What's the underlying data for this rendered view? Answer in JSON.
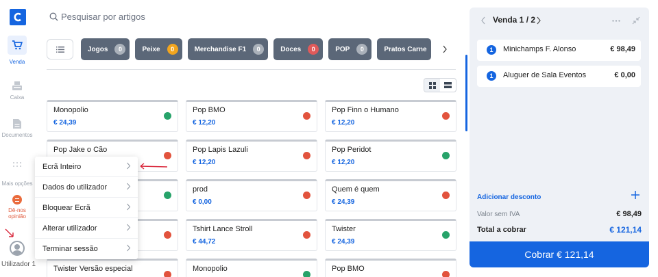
{
  "sidebar": {
    "logo": "C",
    "items": [
      {
        "label": "Venda",
        "icon": "cart-icon"
      },
      {
        "label": "Caixa",
        "icon": "register-icon"
      },
      {
        "label": "Documentos",
        "icon": "document-icon"
      },
      {
        "label": "Mais opções",
        "icon": "dots-grid-icon"
      },
      {
        "label": "Dê-nos opinião",
        "icon": "feedback-icon"
      }
    ],
    "user": "Utilizador 1"
  },
  "search": {
    "placeholder": "Pesquisar por artigos"
  },
  "categories": [
    {
      "label": "Jogos",
      "count": "0",
      "color": "#aab1ba"
    },
    {
      "label": "Peixe",
      "count": "0",
      "color": "#f2a51e"
    },
    {
      "label": "Merchandise F1",
      "count": "0",
      "color": "#aab1ba"
    },
    {
      "label": "Doces",
      "count": "0",
      "color": "#e05a5a"
    },
    {
      "label": "POP",
      "count": "0",
      "color": "#aab1ba"
    },
    {
      "label": "Pratos Carne",
      "count": "",
      "color": "#aab1ba"
    }
  ],
  "products": [
    {
      "name": "Monopolio",
      "price": "€ 24,39",
      "status": "green"
    },
    {
      "name": "Pop BMO",
      "price": "€ 12,20",
      "status": "red"
    },
    {
      "name": "Pop Finn o Humano",
      "price": "€ 12,20",
      "status": "red"
    },
    {
      "name": "Pop Jake o Cão",
      "price": "",
      "status": "red"
    },
    {
      "name": "Pop Lapis Lazuli",
      "price": "€ 12,20",
      "status": "red"
    },
    {
      "name": "Pop Peridot",
      "price": "€ 12,20",
      "status": "green"
    },
    {
      "name": "",
      "price": "",
      "status": "green"
    },
    {
      "name": "prod",
      "price": "€ 0,00",
      "status": "red"
    },
    {
      "name": "Quem é quem",
      "price": "€ 24,39",
      "status": "red"
    },
    {
      "name": "",
      "price": "",
      "status": "red"
    },
    {
      "name": "Tshirt Lance Stroll",
      "price": "€ 44,72",
      "status": "red"
    },
    {
      "name": "Twister",
      "price": "€ 24,39",
      "status": "green"
    },
    {
      "name": "Twister Versão especial",
      "price": "",
      "status": "red"
    },
    {
      "name": "Monopolio",
      "price": "",
      "status": "green"
    },
    {
      "name": "Pop BMO",
      "price": "",
      "status": "red"
    }
  ],
  "status_colors": {
    "green": "#27a36a",
    "red": "#e2533d"
  },
  "user_menu": {
    "items": [
      "Ecrã Inteiro",
      "Dados do utilizador",
      "Bloquear Ecrã",
      "Alterar utilizador",
      "Terminar sessão"
    ]
  },
  "sale": {
    "title": "Venda 1 / 2",
    "lines": [
      {
        "qty": "1",
        "name": "Minichamps F. Alonso",
        "price": "€ 98,49"
      },
      {
        "qty": "1",
        "name": "Aluguer de Sala Eventos",
        "price": "€ 0,00"
      }
    ],
    "discount_label": "Adicionar desconto",
    "subtotal_label": "Valor sem IVA",
    "subtotal": "€ 98,49",
    "total_label": "Total a cobrar",
    "total": "€ 121,14",
    "charge_label": "Cobrar € 121,14"
  }
}
